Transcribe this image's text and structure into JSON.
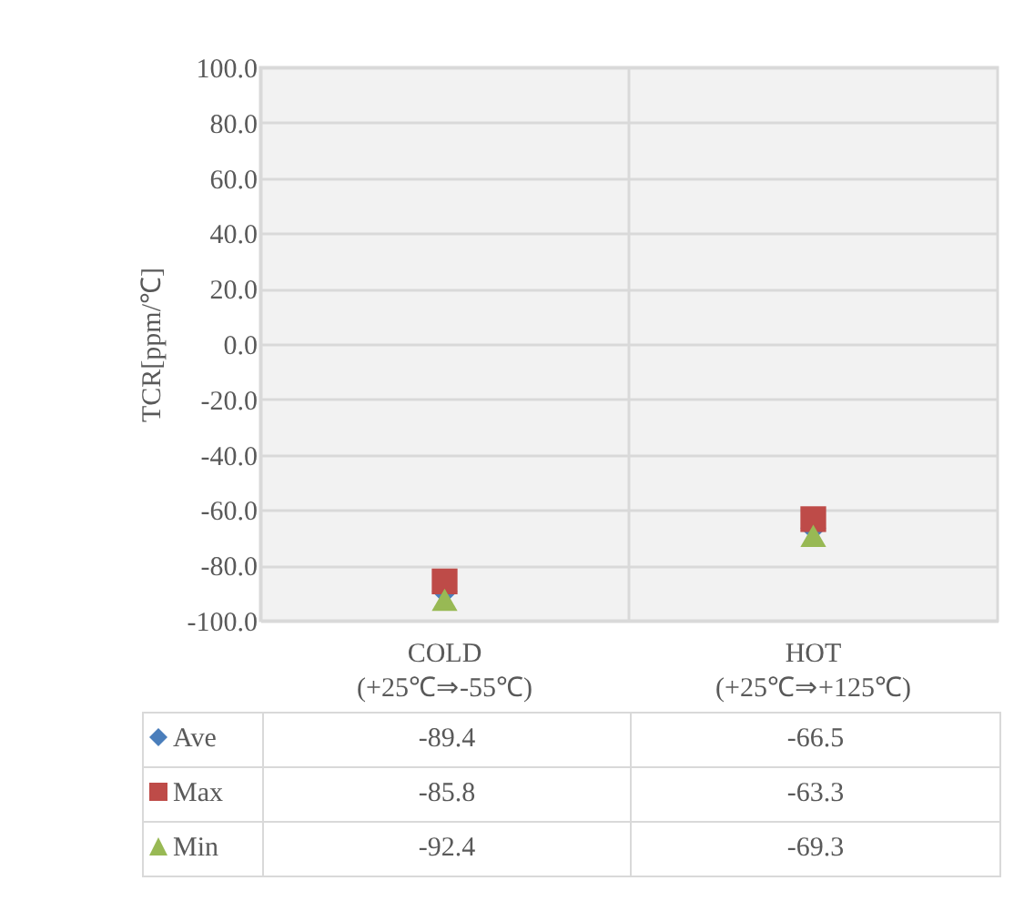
{
  "chart_data": {
    "type": "scatter",
    "ylabel": "TCR[ppm/℃]",
    "categories": [
      "COLD\n(+25℃⇒-55℃)",
      "HOT\n(+25℃⇒+125℃)"
    ],
    "series": [
      {
        "name": "Ave",
        "color": "#4a7ebb",
        "marker": "diamond",
        "values": [
          -89.4,
          -66.5
        ]
      },
      {
        "name": "Max",
        "color": "#be4b48",
        "marker": "square",
        "values": [
          -85.8,
          -63.3
        ]
      },
      {
        "name": "Min",
        "color": "#98b954",
        "marker": "triangle",
        "values": [
          -92.4,
          -69.3
        ]
      }
    ],
    "ylim": [
      -100,
      100
    ],
    "yticks": [
      {
        "value": -100,
        "label": "-100.0"
      },
      {
        "value": -80,
        "label": "-80.0"
      },
      {
        "value": -60,
        "label": "-60.0"
      },
      {
        "value": -40,
        "label": "-40.0"
      },
      {
        "value": -20,
        "label": "-20.0"
      },
      {
        "value": 0,
        "label": "0.0"
      },
      {
        "value": 20,
        "label": "20.0"
      },
      {
        "value": 40,
        "label": "40.0"
      },
      {
        "value": 60,
        "label": "60.0"
      },
      {
        "value": 80,
        "label": "80.0"
      },
      {
        "value": 100,
        "label": "100.0"
      }
    ],
    "grid": true,
    "legend": "bottom",
    "data_labels": true
  }
}
